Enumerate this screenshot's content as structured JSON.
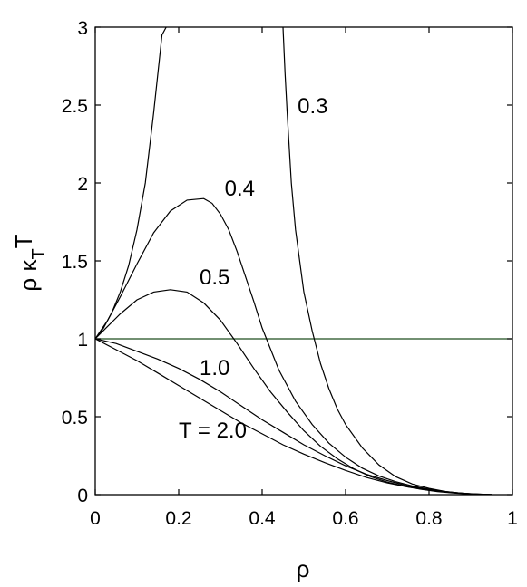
{
  "chart_data": {
    "type": "line",
    "xlabel": "ρ",
    "ylabel": {
      "base": "ρ κ",
      "sub": "T",
      "tail": "T"
    },
    "xlim": [
      0,
      1
    ],
    "ylim": [
      0,
      3
    ],
    "xticks": [
      0,
      0.2,
      0.4,
      0.6,
      0.8,
      1
    ],
    "xtick_labels": [
      "0",
      "0.2",
      "0.4",
      "0.6",
      "0.8",
      "1"
    ],
    "yticks": [
      0,
      0.5,
      1,
      1.5,
      2,
      2.5,
      3
    ],
    "ytick_labels": [
      "0",
      "0.5",
      "1",
      "1.5",
      "2",
      "2.5",
      "3"
    ],
    "grid": false,
    "series": [
      {
        "name": "0.3",
        "x": [
          0,
          0.02,
          0.04,
          0.06,
          0.08,
          0.1,
          0.12,
          0.14,
          0.16,
          0.17
        ],
        "y": [
          1.0,
          1.07,
          1.17,
          1.3,
          1.47,
          1.7,
          2.0,
          2.45,
          2.95,
          3.0
        ]
      },
      {
        "name": "0.3",
        "x": [
          0.45,
          0.455,
          0.46,
          0.47,
          0.48,
          0.5,
          0.52,
          0.54,
          0.56,
          0.58,
          0.6,
          0.64,
          0.68,
          0.72,
          0.76,
          0.8,
          0.84,
          0.88,
          0.92,
          0.95
        ],
        "y": [
          3.0,
          2.7,
          2.45,
          2.0,
          1.7,
          1.3,
          1.05,
          0.84,
          0.68,
          0.55,
          0.45,
          0.3,
          0.19,
          0.115,
          0.068,
          0.04,
          0.02,
          0.008,
          0.002,
          0.0
        ]
      },
      {
        "name": "0.4",
        "x": [
          0,
          0.03,
          0.06,
          0.1,
          0.14,
          0.18,
          0.22,
          0.26,
          0.28,
          0.3,
          0.32,
          0.34,
          0.36,
          0.38,
          0.4,
          0.44,
          0.48,
          0.52,
          0.56,
          0.6,
          0.64,
          0.68,
          0.72,
          0.76,
          0.8,
          0.84,
          0.88,
          0.92,
          0.95
        ],
        "y": [
          1.0,
          1.12,
          1.27,
          1.48,
          1.68,
          1.82,
          1.89,
          1.9,
          1.87,
          1.8,
          1.7,
          1.56,
          1.4,
          1.24,
          1.07,
          0.8,
          0.6,
          0.45,
          0.33,
          0.24,
          0.17,
          0.12,
          0.083,
          0.055,
          0.035,
          0.02,
          0.009,
          0.003,
          0.0
        ]
      },
      {
        "name": "0.5",
        "x": [
          0,
          0.03,
          0.06,
          0.1,
          0.14,
          0.18,
          0.22,
          0.26,
          0.3,
          0.34,
          0.38,
          0.42,
          0.46,
          0.5,
          0.54,
          0.58,
          0.62,
          0.66,
          0.7,
          0.74,
          0.78,
          0.82,
          0.86,
          0.9,
          0.95
        ],
        "y": [
          1.0,
          1.08,
          1.16,
          1.25,
          1.3,
          1.315,
          1.3,
          1.23,
          1.12,
          0.97,
          0.81,
          0.66,
          0.53,
          0.41,
          0.31,
          0.23,
          0.165,
          0.115,
          0.08,
          0.055,
          0.035,
          0.02,
          0.01,
          0.004,
          0.0
        ]
      },
      {
        "name": "1.0",
        "x": [
          0,
          0.05,
          0.1,
          0.15,
          0.2,
          0.25,
          0.3,
          0.35,
          0.4,
          0.45,
          0.5,
          0.55,
          0.6,
          0.65,
          0.7,
          0.75,
          0.8,
          0.85,
          0.9,
          0.95
        ],
        "y": [
          1.0,
          0.97,
          0.92,
          0.87,
          0.81,
          0.74,
          0.66,
          0.57,
          0.48,
          0.4,
          0.32,
          0.25,
          0.185,
          0.13,
          0.09,
          0.055,
          0.03,
          0.015,
          0.005,
          0.0
        ]
      },
      {
        "name": "T = 2.0",
        "x": [
          0,
          0.05,
          0.1,
          0.15,
          0.2,
          0.25,
          0.3,
          0.35,
          0.4,
          0.45,
          0.5,
          0.55,
          0.6,
          0.65,
          0.7,
          0.75,
          0.8,
          0.85,
          0.9,
          0.95
        ],
        "y": [
          1.0,
          0.93,
          0.86,
          0.78,
          0.7,
          0.62,
          0.54,
          0.46,
          0.39,
          0.32,
          0.26,
          0.205,
          0.155,
          0.11,
          0.075,
          0.048,
          0.028,
          0.014,
          0.005,
          0.0
        ]
      }
    ],
    "reference_line": {
      "y": 1,
      "color": "#1f4d1f"
    },
    "annotations": [
      {
        "text": "0.3",
        "x": 0.485,
        "y": 2.5
      },
      {
        "text": "0.4",
        "x": 0.31,
        "y": 1.97
      },
      {
        "text": "0.5",
        "x": 0.25,
        "y": 1.4
      },
      {
        "text": "1.0",
        "x": 0.25,
        "y": 0.82
      },
      {
        "text": "T = 2.0",
        "x": 0.2,
        "y": 0.42
      }
    ]
  }
}
